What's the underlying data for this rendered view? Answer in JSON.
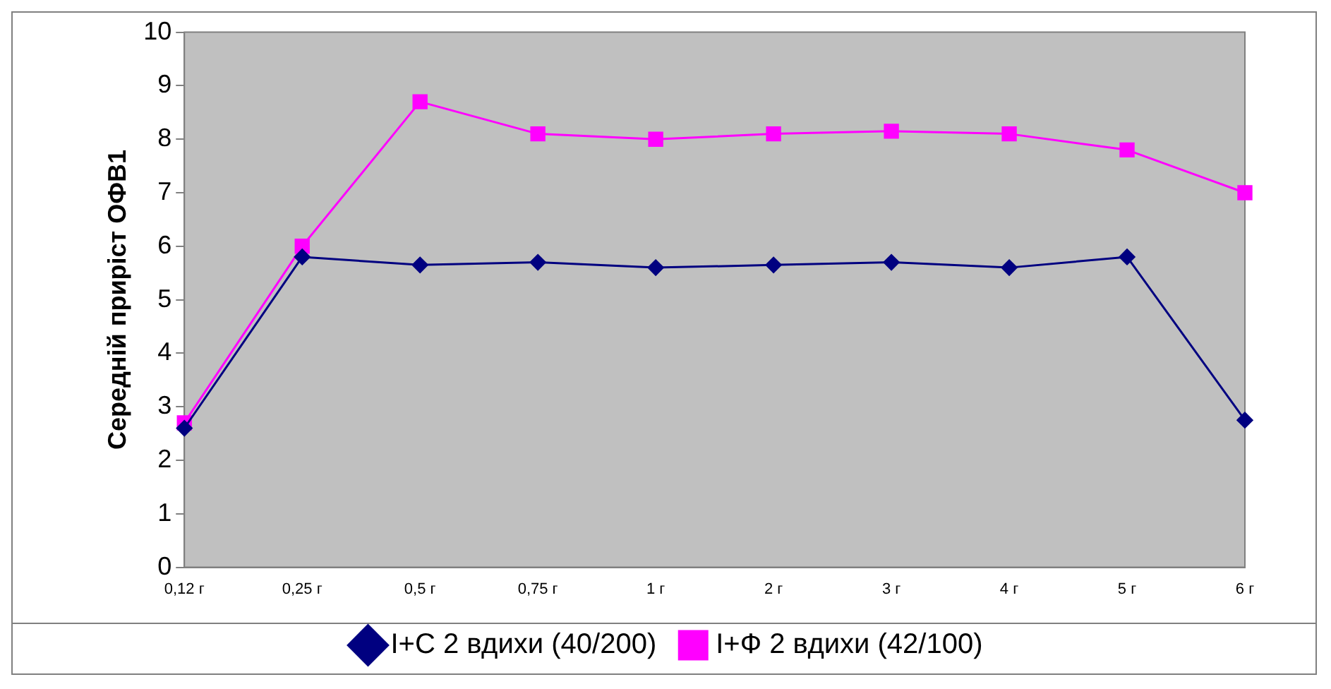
{
  "chart_data": {
    "type": "line",
    "ylabel": "Середній приріст ОФВ1",
    "categories": [
      "0,12 г",
      "0,25 г",
      "0,5 г",
      "0,75 г",
      "1 г",
      "2 г",
      "3 г",
      "4 г",
      "5 г",
      "6 г"
    ],
    "series": [
      {
        "name": "І+С 2 вдихи (40/200)",
        "color": "#000080",
        "marker": "diamond",
        "values": [
          2.6,
          5.8,
          5.65,
          5.7,
          5.6,
          5.65,
          5.7,
          5.6,
          5.8,
          2.75
        ]
      },
      {
        "name": "І+Ф 2 вдихи (42/100)",
        "color": "#ff00ff",
        "marker": "square",
        "values": [
          2.7,
          6.0,
          8.7,
          8.1,
          8.0,
          8.1,
          8.15,
          8.1,
          7.8,
          7.0
        ]
      }
    ],
    "ylim": [
      0,
      10
    ],
    "yticks": [
      0,
      1,
      2,
      3,
      4,
      5,
      6,
      7,
      8,
      9,
      10
    ],
    "grid": false,
    "legend": "bottom",
    "line_style": "solid"
  }
}
